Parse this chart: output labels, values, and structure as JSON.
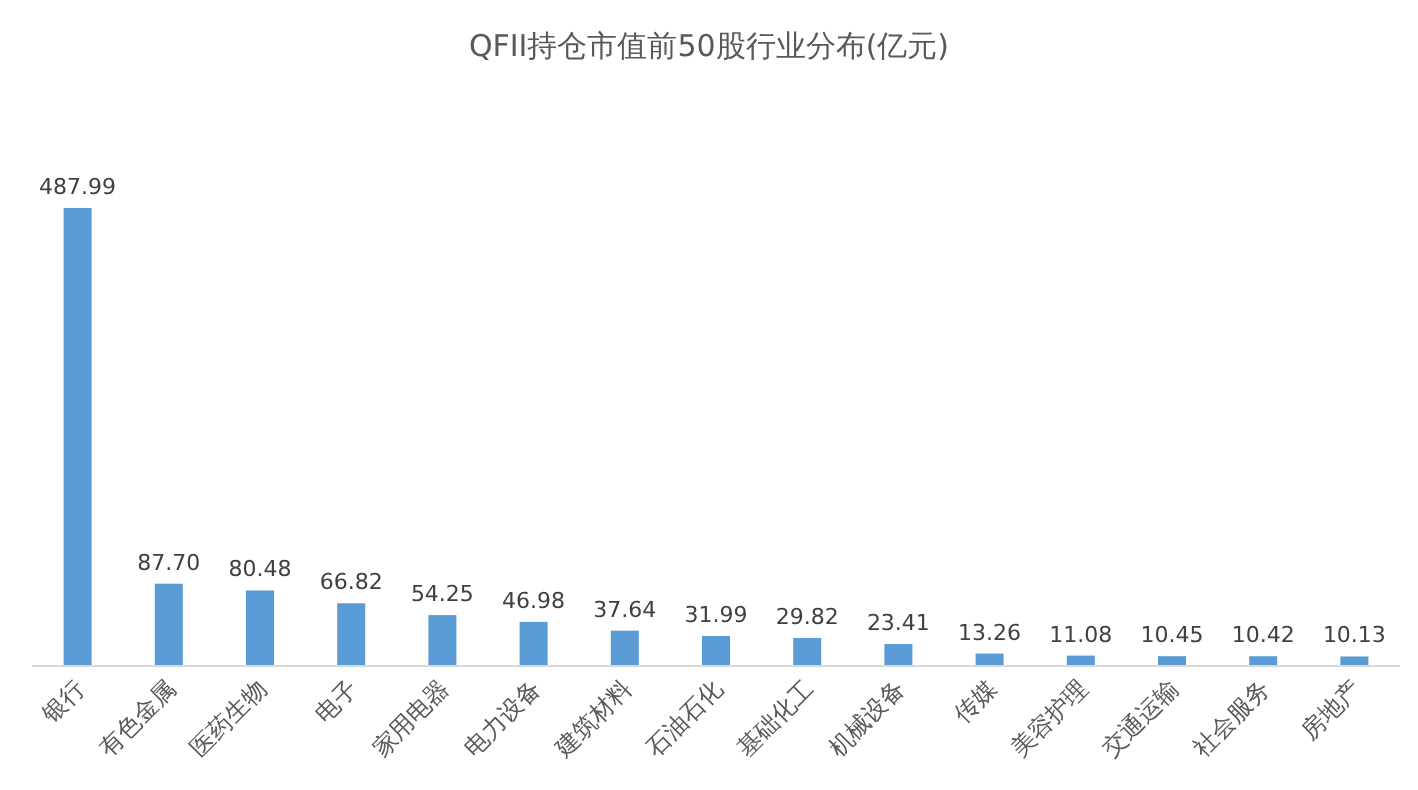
{
  "chart_data": {
    "type": "bar",
    "title": "QFII持仓市值前50股行业分布(亿元)",
    "categories": [
      "银行",
      "有色金属",
      "医药生物",
      "电子",
      "家用电器",
      "电力设备",
      "建筑材料",
      "石油石化",
      "基础化工",
      "机械设备",
      "传媒",
      "美容护理",
      "交通运输",
      "社会服务",
      "房地产"
    ],
    "values": [
      487.99,
      87.7,
      80.48,
      66.82,
      54.25,
      46.98,
      37.64,
      31.99,
      29.82,
      23.41,
      13.26,
      11.08,
      10.45,
      10.42,
      10.13
    ],
    "color": "#5b9bd5",
    "value_labels": [
      "487.99",
      "87.70",
      "80.48",
      "66.82",
      "54.25",
      "46.98",
      "37.64",
      "31.99",
      "29.82",
      "23.41",
      "13.26",
      "11.08",
      "10.45",
      "10.42",
      "10.13"
    ]
  }
}
